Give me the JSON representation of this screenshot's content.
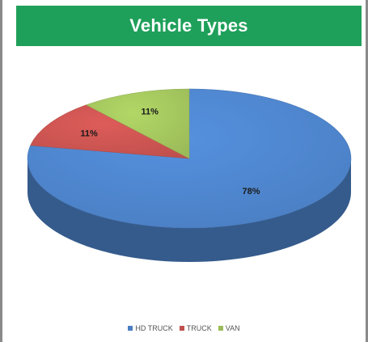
{
  "chart_data": {
    "type": "pie",
    "title": "Vehicle Types",
    "categories": [
      "HD TRUCK",
      "TRUCK",
      "VAN"
    ],
    "values": [
      78,
      11,
      11
    ],
    "data_labels": [
      "78%",
      "11%",
      "11%"
    ],
    "colors": [
      "#4a7ec2",
      "#c0504d",
      "#9bbb59"
    ],
    "legend_position": "bottom",
    "style": "3d"
  }
}
